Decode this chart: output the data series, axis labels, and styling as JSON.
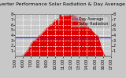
{
  "title": "Solar PV/Inverter Performance Solar Radiation & Day Average per Minute",
  "bg_color": "#c8c8c8",
  "plot_bg_color": "#c8c8c8",
  "area_color": "#dd0000",
  "avg_line_color": "#2222cc",
  "grid_color": "#ffffff",
  "text_color": "#000000",
  "ylim": [
    0,
    8
  ],
  "xlim": [
    0,
    144
  ],
  "avg_value": 3.5,
  "x_ticks": [
    0,
    12,
    24,
    36,
    48,
    60,
    72,
    84,
    96,
    108,
    120,
    132,
    144
  ],
  "x_labels": [
    "5:00",
    "6:00",
    "7:00",
    "8:00",
    "9:00",
    "10:00",
    "11:00",
    "12:00",
    "13:00",
    "14:00",
    "15:00",
    "16:00",
    "17:00"
  ],
  "y_ticks": [
    1,
    2,
    3,
    4,
    5,
    6,
    7,
    8
  ],
  "y_labels": [
    "1",
    "2",
    "3",
    "4",
    "5",
    "6",
    "7",
    "8"
  ],
  "legend_solar": "Solar Radiation",
  "legend_avg": "Day Average",
  "title_fontsize": 4.5,
  "tick_fontsize": 3.5,
  "legend_fontsize": 3.5
}
